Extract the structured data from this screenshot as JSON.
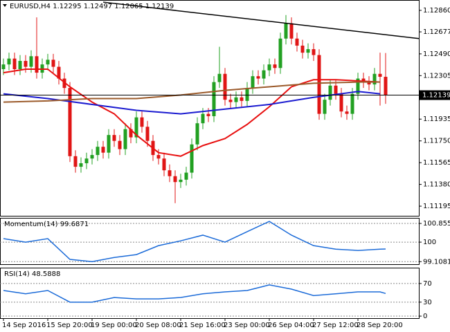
{
  "chart_data": [
    {
      "type": "candlestick",
      "title": "EURUSD,H4",
      "xlim": [
        -0.625,
        75
      ],
      "xticks": [
        {
          "value": 0,
          "label": "14 Sep 2016"
        },
        {
          "value": 8,
          "label": "15 Sep 20:00"
        },
        {
          "value": 16,
          "label": "19 Sep 00:00"
        },
        {
          "value": 24,
          "label": "20 Sep 08:00"
        },
        {
          "value": 32,
          "label": "21 Sep 16:00"
        },
        {
          "value": 40,
          "label": "23 Sep 00:00"
        },
        {
          "value": 48,
          "label": "26 Sep 04:00"
        },
        {
          "value": 56,
          "label": "27 Sep 12:00"
        },
        {
          "value": 64,
          "label": "28 Sep 20:00"
        }
      ],
      "ylim": [
        1.11113,
        1.12948
      ],
      "yticks": [
        {
          "value": 1.1286,
          "label": "1.12860"
        },
        {
          "value": 1.12677,
          "label": "1.12677"
        },
        {
          "value": 1.1249,
          "label": "1.12490"
        },
        {
          "value": 1.12305,
          "label": "1.12305"
        },
        {
          "value": 1.11935,
          "label": "1.11935"
        },
        {
          "value": 1.1175,
          "label": "1.11750"
        },
        {
          "value": 1.11565,
          "label": "1.11565"
        },
        {
          "value": 1.1138,
          "label": "1.11380"
        },
        {
          "value": 1.11195,
          "label": "1.11195"
        }
      ],
      "up_color": "#22a022",
      "down_color": "#e01515",
      "open": [
        1.1236,
        1.124,
        1.1245,
        1.1236,
        1.1243,
        1.1238,
        1.1247,
        1.1233,
        1.124,
        1.1244,
        1.1238,
        1.1228,
        1.122,
        1.1162,
        1.1153,
        1.1156,
        1.116,
        1.1163,
        1.117,
        1.1165,
        1.118,
        1.1175,
        1.1168,
        1.1185,
        1.1178,
        1.1195,
        1.1187,
        1.1175,
        1.1163,
        1.116,
        1.115,
        1.1145,
        1.114,
        1.1142,
        1.1148,
        1.1172,
        1.119,
        1.1198,
        1.1196,
        1.1225,
        1.1232,
        1.121,
        1.1208,
        1.1212,
        1.1209,
        1.122,
        1.123,
        1.1228,
        1.1235,
        1.124,
        1.1237,
        1.1262,
        1.1275,
        1.1262,
        1.1256,
        1.125,
        1.1253,
        1.1248,
        1.1198,
        1.121,
        1.1222,
        1.1215,
        1.12,
        1.1198,
        1.1215,
        1.1228,
        1.1225,
        1.1223,
        1.1232,
        1.12295
      ],
      "high": [
        1.1245,
        1.125,
        1.125,
        1.1248,
        1.1248,
        1.1252,
        1.128,
        1.1245,
        1.1249,
        1.1249,
        1.1243,
        1.1233,
        1.1225,
        1.1167,
        1.1161,
        1.1165,
        1.1168,
        1.1175,
        1.1175,
        1.1185,
        1.1185,
        1.118,
        1.119,
        1.119,
        1.12,
        1.12,
        1.1192,
        1.118,
        1.1168,
        1.1165,
        1.1155,
        1.115,
        1.1147,
        1.1153,
        1.1177,
        1.1195,
        1.1203,
        1.1203,
        1.123,
        1.1255,
        1.1237,
        1.1215,
        1.1217,
        1.1217,
        1.1225,
        1.1235,
        1.1235,
        1.124,
        1.1245,
        1.1245,
        1.1267,
        1.1282,
        1.128,
        1.1267,
        1.1261,
        1.1258,
        1.1258,
        1.1253,
        1.1215,
        1.1227,
        1.1227,
        1.122,
        1.1205,
        1.122,
        1.1233,
        1.1233,
        1.123,
        1.1237,
        1.125,
        1.12497
      ],
      "low": [
        1.1231,
        1.1235,
        1.1231,
        1.1231,
        1.1233,
        1.1233,
        1.1228,
        1.1228,
        1.1235,
        1.1233,
        1.1223,
        1.1215,
        1.1157,
        1.1148,
        1.1148,
        1.1151,
        1.1155,
        1.1158,
        1.116,
        1.116,
        1.117,
        1.1163,
        1.1163,
        1.1173,
        1.1173,
        1.1182,
        1.117,
        1.1158,
        1.1155,
        1.1145,
        1.114,
        1.1122,
        1.1135,
        1.1137,
        1.1143,
        1.1167,
        1.1185,
        1.1191,
        1.1191,
        1.122,
        1.1205,
        1.1203,
        1.1203,
        1.1204,
        1.1204,
        1.1215,
        1.1223,
        1.1223,
        1.123,
        1.1232,
        1.1232,
        1.1257,
        1.1257,
        1.1251,
        1.1245,
        1.1245,
        1.1243,
        1.1193,
        1.1193,
        1.1205,
        1.121,
        1.1195,
        1.1193,
        1.1193,
        1.121,
        1.122,
        1.1218,
        1.1218,
        1.1205,
        1.12065
      ],
      "close": [
        1.124,
        1.1245,
        1.1236,
        1.1243,
        1.1238,
        1.1247,
        1.1233,
        1.124,
        1.1244,
        1.1238,
        1.1228,
        1.122,
        1.1162,
        1.1153,
        1.1156,
        1.116,
        1.1163,
        1.117,
        1.1165,
        1.118,
        1.1175,
        1.1168,
        1.1185,
        1.1178,
        1.1195,
        1.1187,
        1.1175,
        1.1163,
        1.116,
        1.115,
        1.1145,
        1.114,
        1.1142,
        1.1148,
        1.1172,
        1.119,
        1.1198,
        1.1196,
        1.1225,
        1.1232,
        1.121,
        1.1208,
        1.1212,
        1.1209,
        1.122,
        1.123,
        1.1228,
        1.1235,
        1.124,
        1.1237,
        1.1262,
        1.1275,
        1.1262,
        1.1256,
        1.125,
        1.1253,
        1.1248,
        1.1198,
        1.121,
        1.1222,
        1.1215,
        1.12,
        1.1198,
        1.1215,
        1.1228,
        1.1225,
        1.1223,
        1.1232,
        1.12295,
        1.12139
      ],
      "overlays": [
        {
          "color": "#e81010",
          "x": [
            0,
            4,
            8,
            12,
            16,
            20,
            24,
            28,
            32,
            36,
            40,
            44,
            48,
            52,
            56,
            60,
            64,
            68
          ],
          "values": [
            1.1233,
            1.1236,
            1.1236,
            1.1221,
            1.1208,
            1.1198,
            1.118,
            1.1165,
            1.1162,
            1.1171,
            1.1177,
            1.1189,
            1.1204,
            1.1221,
            1.1227,
            1.1227,
            1.1226,
            1.1225
          ]
        },
        {
          "color": "#1a1ad0",
          "x": [
            0,
            8,
            16,
            24,
            32,
            40,
            48,
            56,
            64,
            68
          ],
          "values": [
            1.1215,
            1.1211,
            1.1206,
            1.1201,
            1.1198,
            1.1202,
            1.1206,
            1.1212,
            1.1217,
            1.1215
          ]
        },
        {
          "color": "#9b5a2a",
          "x": [
            0,
            8,
            16,
            24,
            32,
            40,
            48,
            56,
            64,
            68
          ],
          "values": [
            1.1208,
            1.1209,
            1.1211,
            1.1211,
            1.1214,
            1.1218,
            1.1221,
            1.1224,
            1.1225,
            1.1225
          ]
        }
      ],
      "trendline": {
        "color": "#000000",
        "x": [
          18,
          75
        ],
        "values": [
          1.1293,
          1.1262
        ]
      }
    },
    {
      "type": "line",
      "title": "Momentum(14)",
      "color": "#1a6ad8",
      "x": [
        0,
        4,
        8,
        12,
        16,
        20,
        24,
        28,
        32,
        36,
        40,
        44,
        48,
        52,
        56,
        60,
        64,
        68,
        69
      ],
      "values": [
        100.16,
        100,
        100.16,
        99.21,
        99.11,
        99.3,
        99.43,
        99.84,
        100.06,
        100.32,
        100,
        100.48,
        100.95,
        100.32,
        99.84,
        99.68,
        99.62,
        99.68,
        99.6871
      ],
      "ylim": [
        98.99,
        101.11
      ],
      "yticks": [
        100.855,
        100,
        99.1081
      ]
    },
    {
      "type": "line",
      "title": "RSI(14)",
      "color": "#1a6ad8",
      "x": [
        0,
        4,
        8,
        12,
        16,
        20,
        24,
        28,
        32,
        36,
        40,
        44,
        48,
        52,
        56,
        60,
        64,
        68,
        69
      ],
      "values": [
        55,
        48,
        55,
        30,
        30,
        40,
        37,
        37,
        40,
        48,
        52,
        55,
        67,
        58,
        44,
        48,
        52,
        52,
        48.5888
      ],
      "ylim": [
        -4.4,
        104
      ],
      "yticks": [
        70,
        30,
        0
      ]
    }
  ]
}
